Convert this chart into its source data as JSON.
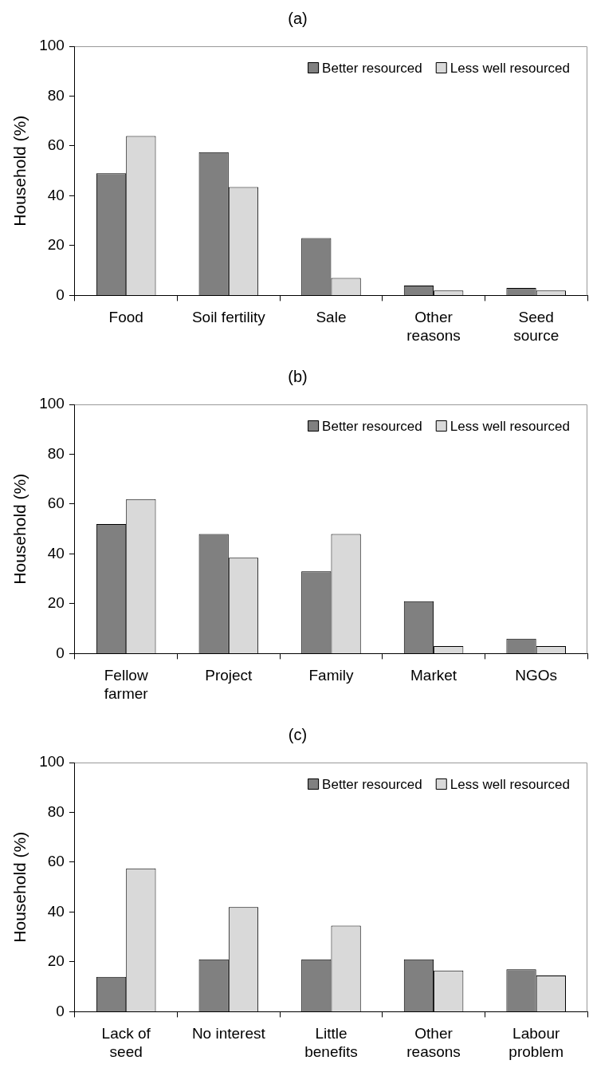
{
  "chart_data": [
    {
      "type": "bar",
      "title": "(a)",
      "ylabel": "Household (%)",
      "categories": [
        "Food",
        "Soil fertility",
        "Sale",
        "Other\nreasons",
        "Seed\nsource"
      ],
      "series": [
        {
          "name": "Better resourced",
          "color": "#808080",
          "values": [
            49,
            57.5,
            23,
            4,
            3
          ]
        },
        {
          "name": "Less well resourced",
          "color": "#d9d9d9",
          "values": [
            64,
            43.5,
            7,
            2,
            2
          ]
        }
      ],
      "ylim": [
        0,
        100
      ],
      "yticks": [
        0,
        20,
        40,
        60,
        80,
        100
      ],
      "grid": false,
      "legend": "top right"
    },
    {
      "type": "bar",
      "title": "(b)",
      "ylabel": "Household (%)",
      "categories": [
        "Fellow\nfarmer",
        "Project",
        "Family",
        "Market",
        "NGOs"
      ],
      "series": [
        {
          "name": "Better resourced",
          "color": "#808080",
          "values": [
            52,
            48,
            33,
            21,
            6
          ]
        },
        {
          "name": "Less well resourced",
          "color": "#d9d9d9",
          "values": [
            62,
            38.5,
            48,
            3,
            3
          ]
        }
      ],
      "ylim": [
        0,
        100
      ],
      "yticks": [
        0,
        20,
        40,
        60,
        80,
        100
      ],
      "grid": false,
      "legend": "top right"
    },
    {
      "type": "bar",
      "title": "(c)",
      "ylabel": "Household (%)",
      "categories": [
        "Lack of\nseed",
        "No interest",
        "Little\nbenefits",
        "Other\nreasons",
        "Labour\nproblem"
      ],
      "series": [
        {
          "name": "Better resourced",
          "color": "#808080",
          "values": [
            14,
            21,
            21,
            21,
            17
          ]
        },
        {
          "name": "Less well resourced",
          "color": "#d9d9d9",
          "values": [
            57.5,
            42,
            34.5,
            16.5,
            14.5
          ]
        }
      ],
      "ylim": [
        0,
        100
      ],
      "yticks": [
        0,
        20,
        40,
        60,
        80,
        100
      ],
      "grid": false,
      "legend": "top right"
    }
  ]
}
